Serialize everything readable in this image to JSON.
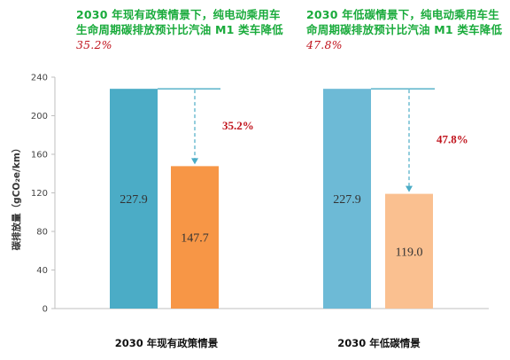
{
  "annotations": [
    {
      "text": "2030 年现有政策情景下，纯电动乘用车生命周期碳排放预计比汽油 M1 类车降低",
      "pct": "35.2%"
    },
    {
      "text": "2030 年低碳情景下，纯电动乘用车生命周期碳排放预计比汽油 M1 类车降低",
      "pct": "47.8%"
    }
  ],
  "chart_data": {
    "type": "bar",
    "ylabel": "碳排放量（gCO₂e/km）",
    "ylim": [
      0,
      240
    ],
    "yticks": [
      0,
      40,
      80,
      120,
      160,
      200,
      240
    ],
    "grid": false,
    "categories": [
      "2030 年现有政策情景",
      "2030 年低碳情景"
    ],
    "groups": [
      {
        "category": "2030 年现有政策情景",
        "bars": [
          {
            "value": 227.9,
            "label": "227.9",
            "color": "#4bacc6"
          },
          {
            "value": 147.7,
            "label": "147.7",
            "color": "#f79646"
          }
        ],
        "reduction_label": "35.2%"
      },
      {
        "category": "2030 年低碳情景",
        "bars": [
          {
            "value": 227.9,
            "label": "227.9",
            "color": "#6dbad6"
          },
          {
            "value": 119.0,
            "label": "119.0",
            "color": "#fac090"
          }
        ],
        "reduction_label": "47.8%"
      }
    ],
    "colors": {
      "axis": "#bfbfbf",
      "arrow": "#4bacc6",
      "reduction": "#c0131c"
    }
  }
}
